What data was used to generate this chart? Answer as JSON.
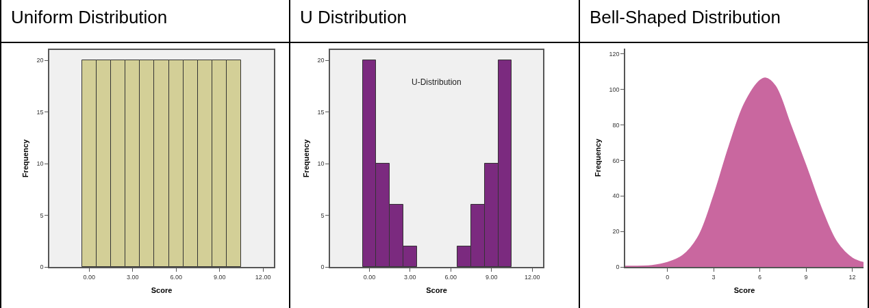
{
  "chart_data": [
    {
      "type": "histogram",
      "title": "Uniform Distribution",
      "xlabel": "Score",
      "ylabel": "Frequency",
      "color": "#d3cf97",
      "bins": [
        -0.5,
        0.5,
        1.5,
        2.5,
        3.5,
        4.5,
        5.5,
        6.5,
        7.5,
        8.5,
        9.5,
        10.5
      ],
      "values": [
        20,
        20,
        20,
        20,
        20,
        20,
        20,
        20,
        20,
        20,
        20
      ],
      "xlim": [
        -2.75,
        12.75
      ],
      "xticks": [
        {
          "value": 0,
          "label": "0.00"
        },
        {
          "value": 3,
          "label": "3.00"
        },
        {
          "value": 6,
          "label": "6.00"
        },
        {
          "value": 9,
          "label": "9.00"
        },
        {
          "value": 12,
          "label": "12.00"
        }
      ],
      "ylim": [
        0,
        21
      ],
      "yticks": [
        0,
        5,
        10,
        15,
        20
      ]
    },
    {
      "type": "histogram",
      "title": "U Distribution",
      "xlabel": "Score",
      "ylabel": "Frequency",
      "color": "#7b2a7f",
      "bins": [
        -0.5,
        0.5,
        1.5,
        2.5,
        3.5,
        4.5,
        5.5,
        6.5,
        7.5,
        8.5,
        9.5,
        10.5
      ],
      "values": [
        20,
        10,
        6,
        2,
        0,
        0,
        0,
        2,
        6,
        10,
        20
      ],
      "annotations": [
        "U-Distribution"
      ],
      "xlim": [
        -2.9,
        12.8
      ],
      "xticks": [
        {
          "value": 0,
          "label": "0.00"
        },
        {
          "value": 3,
          "label": "3.00"
        },
        {
          "value": 6,
          "label": "6.00"
        },
        {
          "value": 9,
          "label": "9.00"
        },
        {
          "value": 12,
          "label": "12.00"
        }
      ],
      "ylim": [
        0,
        21
      ],
      "yticks": [
        0,
        5,
        10,
        15,
        20
      ]
    },
    {
      "type": "area",
      "title": "Bell-Shaped Distribution",
      "xlabel": "Score",
      "ylabel": "Frequency",
      "color": "#c9679f",
      "x": [
        -2.74,
        -1,
        0,
        1,
        2,
        3,
        4,
        5,
        6,
        6.36,
        7,
        8,
        9,
        10,
        11,
        12,
        12.73
      ],
      "values": [
        0.4,
        0.8,
        2.5,
        6.5,
        17,
        40,
        68,
        92,
        105,
        106.4,
        102,
        80,
        57,
        33,
        14,
        5,
        2.5
      ],
      "xlim": [
        -2.74,
        12.73
      ],
      "xticks": [
        0,
        3,
        6,
        9,
        12
      ],
      "ylim": [
        0,
        123
      ],
      "yticks": [
        0,
        20,
        40,
        60,
        80,
        100,
        120
      ]
    }
  ]
}
